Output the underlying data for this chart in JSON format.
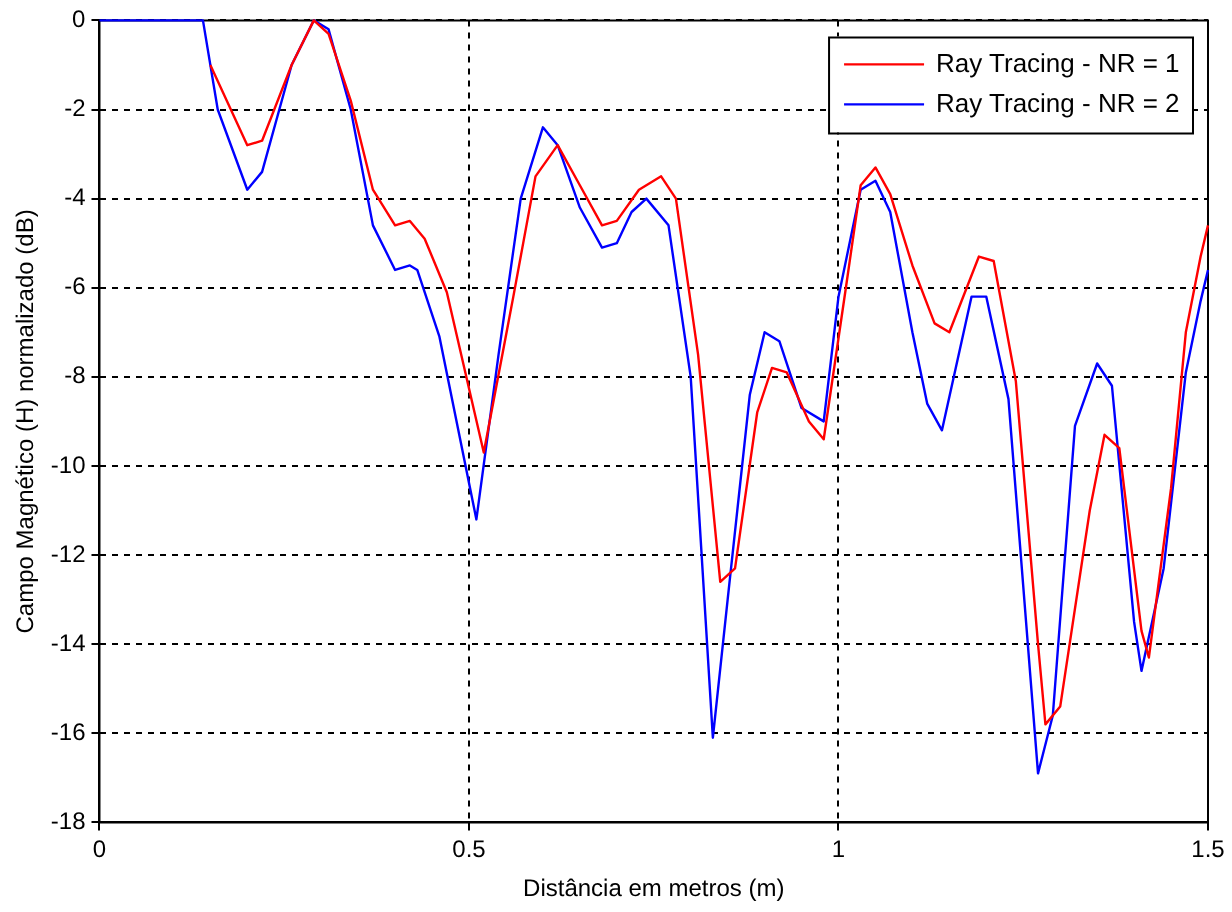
{
  "chart_data": {
    "type": "line",
    "xlabel": "Distância em metros (m)",
    "ylabel": "Campo Magnético (H) normalizado (dB)",
    "xlim": [
      0,
      1.5
    ],
    "xticks": [
      0,
      0.5,
      1,
      1.5
    ],
    "ylim": [
      -18,
      0
    ],
    "yticks": [
      -18,
      -16,
      -14,
      -12,
      -10,
      -8,
      -6,
      -4,
      -2,
      0
    ],
    "grid": true,
    "legend": "top right",
    "marker": "none",
    "line_style": "solid",
    "series": [
      {
        "name": "Ray Tracing - NR = 1",
        "color": "#ff0000",
        "x": [
          0.15,
          0.2,
          0.22,
          0.26,
          0.29,
          0.31,
          0.34,
          0.37,
          0.4,
          0.42,
          0.44,
          0.47,
          0.52,
          0.56,
          0.59,
          0.62,
          0.65,
          0.68,
          0.7,
          0.73,
          0.76,
          0.78,
          0.81,
          0.84,
          0.86,
          0.89,
          0.91,
          0.93,
          0.96,
          0.98,
          1.01,
          1.03,
          1.05,
          1.07,
          1.1,
          1.13,
          1.15,
          1.19,
          1.21,
          1.24,
          1.27,
          1.28,
          1.3,
          1.34,
          1.36,
          1.38,
          1.41,
          1.42,
          1.45,
          1.47,
          1.49,
          1.5
        ],
        "values": [
          -1.0,
          -2.8,
          -2.7,
          -1.0,
          0,
          -0.3,
          -1.8,
          -3.8,
          -4.6,
          -4.5,
          -4.9,
          -6.1,
          -9.7,
          -6.2,
          -3.5,
          -2.8,
          -3.7,
          -4.6,
          -4.5,
          -3.8,
          -3.5,
          -4.0,
          -7.5,
          -12.6,
          -12.3,
          -8.8,
          -7.8,
          -7.9,
          -9.0,
          -9.4,
          -6.0,
          -3.7,
          -3.3,
          -3.9,
          -5.5,
          -6.8,
          -7.0,
          -5.3,
          -5.4,
          -8.1,
          -14.0,
          -15.8,
          -15.4,
          -11.0,
          -9.3,
          -9.6,
          -13.7,
          -14.3,
          -10.5,
          -7.0,
          -5.3,
          -4.6
        ]
      },
      {
        "name": "Ray Tracing - NR = 2",
        "color": "#0000ff",
        "x": [
          0,
          0.14,
          0.16,
          0.2,
          0.22,
          0.26,
          0.29,
          0.31,
          0.34,
          0.37,
          0.4,
          0.42,
          0.43,
          0.46,
          0.51,
          0.54,
          0.57,
          0.6,
          0.62,
          0.65,
          0.68,
          0.7,
          0.72,
          0.74,
          0.77,
          0.8,
          0.83,
          0.85,
          0.88,
          0.9,
          0.92,
          0.95,
          0.98,
          1.0,
          1.03,
          1.05,
          1.07,
          1.1,
          1.12,
          1.14,
          1.18,
          1.2,
          1.23,
          1.27,
          1.29,
          1.32,
          1.35,
          1.37,
          1.4,
          1.41,
          1.44,
          1.47,
          1.49,
          1.5
        ],
        "values": [
          0,
          0,
          -2.0,
          -3.8,
          -3.4,
          -1.0,
          0,
          -0.2,
          -2.0,
          -4.6,
          -5.6,
          -5.5,
          -5.6,
          -7.1,
          -11.2,
          -7.5,
          -4.0,
          -2.4,
          -2.8,
          -4.2,
          -5.1,
          -5.0,
          -4.3,
          -4.0,
          -4.6,
          -8.0,
          -16.1,
          -13.0,
          -8.4,
          -7.0,
          -7.2,
          -8.7,
          -9.0,
          -6.2,
          -3.8,
          -3.6,
          -4.3,
          -7.0,
          -8.6,
          -9.2,
          -6.2,
          -6.2,
          -8.5,
          -16.9,
          -15.6,
          -9.1,
          -7.7,
          -8.2,
          -13.5,
          -14.6,
          -12.3,
          -7.9,
          -6.3,
          -5.6
        ]
      }
    ]
  }
}
